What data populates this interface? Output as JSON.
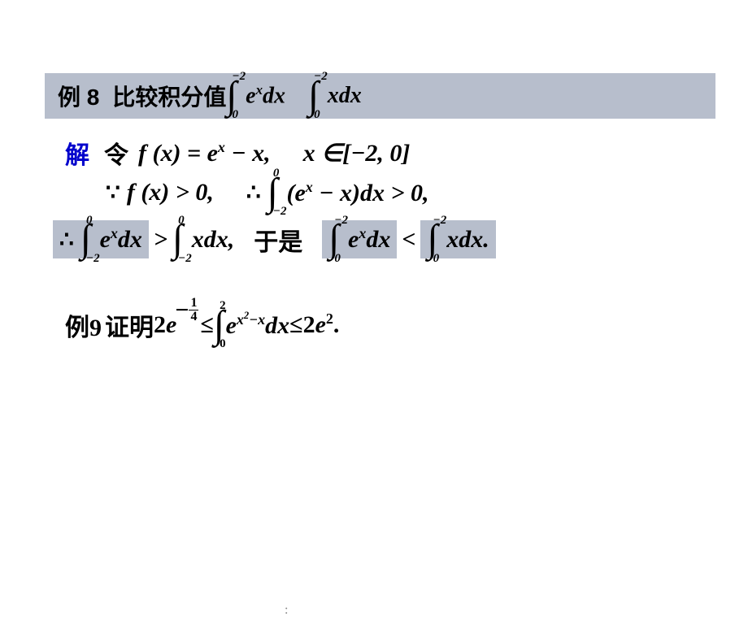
{
  "colors": {
    "highlight_bg": "#b7becc",
    "solution_label": "#0000cc",
    "text": "#000000",
    "background": "#ffffff"
  },
  "typography": {
    "body_fontsize": 30,
    "header_fontsize": 28,
    "sup_fontsize": 15,
    "font_family": "Times New Roman, SimSun, serif"
  },
  "example8": {
    "label": "例 8",
    "text_prefix": "比较积分值",
    "integral1": {
      "lower": "0",
      "upper": "−2",
      "integrand": "e",
      "integrand_sup": "x",
      "dx": "dx"
    },
    "integral2": {
      "lower": "0",
      "upper": "−2",
      "integrand": "x",
      "dx": "dx"
    }
  },
  "solution": {
    "label": "解",
    "line1": {
      "prefix": "令",
      "func": "f (x) = e",
      "func_sup": "x",
      "func_suffix": " − x,",
      "domain": "x ∈[−2, 0]"
    },
    "line2": {
      "because_expr": "f (x) > 0,",
      "therefore_int": {
        "lower": "−2",
        "upper": "0",
        "integrand_open": "(e",
        "integrand_sup": "x",
        "integrand_close": " − x)dx > 0,"
      }
    },
    "line3": {
      "part1_int": {
        "lower": "−2",
        "upper": "0",
        "integrand": "e",
        "integrand_sup": "x",
        "dx": "dx"
      },
      "gt": ">",
      "part2_int": {
        "lower": "−2",
        "upper": "0",
        "integrand": "xdx,"
      },
      "mid_text": "于是",
      "part3_int": {
        "lower": "0",
        "upper": "−2",
        "integrand": "e",
        "integrand_sup": "x",
        "dx": "dx"
      },
      "lt": "<",
      "part4_int": {
        "lower": "0",
        "upper": "−2",
        "integrand": "xdx."
      }
    }
  },
  "example9": {
    "label": "例9",
    "prefix": "证明",
    "lhs_coeff": "2",
    "lhs_base": "e",
    "lhs_exp_sign": "−",
    "lhs_exp_num": "1",
    "lhs_exp_den": "4",
    "le1": "≤",
    "integral": {
      "lower": "0",
      "upper": "2",
      "base": "e",
      "exp": "x",
      "exp_sup": "2",
      "exp_suffix": "−x",
      "dx": "dx"
    },
    "le2": "≤",
    "rhs_coeff": "2",
    "rhs_base": "e",
    "rhs_exp": "2",
    "period": "."
  },
  "footer": ":"
}
